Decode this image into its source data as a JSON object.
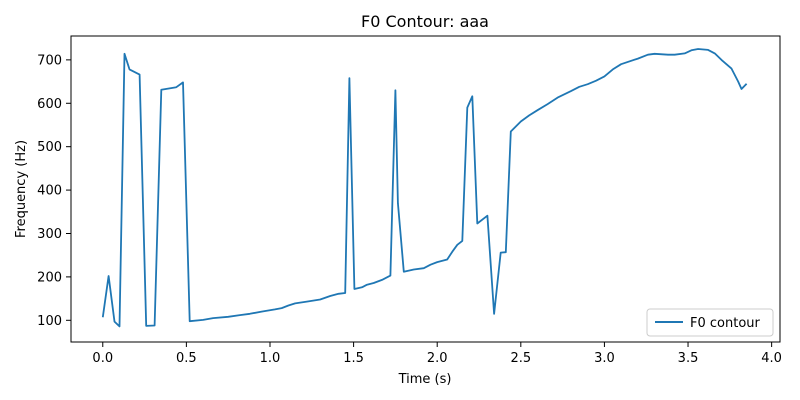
{
  "chart_data": {
    "type": "line",
    "title": "F0 Contour: aaa",
    "xlabel": "Time (s)",
    "ylabel": "Frequency (Hz)",
    "xlim": [
      -0.19,
      4.05
    ],
    "ylim": [
      50,
      755
    ],
    "xticks": [
      0.0,
      0.5,
      1.0,
      1.5,
      2.0,
      2.5,
      3.0,
      3.5,
      4.0
    ],
    "xtick_labels": [
      "0.0",
      "0.5",
      "1.0",
      "1.5",
      "2.0",
      "2.5",
      "3.0",
      "3.5",
      "4.0"
    ],
    "yticks": [
      100,
      200,
      300,
      400,
      500,
      600,
      700
    ],
    "ytick_labels": [
      "100",
      "200",
      "300",
      "400",
      "500",
      "600",
      "700"
    ],
    "grid": false,
    "legend_position": "lower-right",
    "series": [
      {
        "name": "F0 contour",
        "color": "#1f77b4",
        "x": [
          0.0,
          0.035,
          0.07,
          0.1,
          0.13,
          0.16,
          0.22,
          0.26,
          0.31,
          0.35,
          0.44,
          0.48,
          0.52,
          0.6,
          0.66,
          0.75,
          0.82,
          0.88,
          0.95,
          1.03,
          1.07,
          1.11,
          1.15,
          1.22,
          1.3,
          1.36,
          1.41,
          1.45,
          1.475,
          1.505,
          1.55,
          1.58,
          1.62,
          1.67,
          1.72,
          1.75,
          1.765,
          1.8,
          1.86,
          1.92,
          1.96,
          2.0,
          2.06,
          2.09,
          2.12,
          2.15,
          2.18,
          2.21,
          2.24,
          2.3,
          2.34,
          2.38,
          2.41,
          2.44,
          2.5,
          2.55,
          2.6,
          2.66,
          2.72,
          2.8,
          2.85,
          2.9,
          2.95,
          3.0,
          3.05,
          3.1,
          3.2,
          3.26,
          3.3,
          3.38,
          3.42,
          3.48,
          3.52,
          3.56,
          3.62,
          3.66,
          3.7,
          3.76,
          3.8,
          3.82,
          3.85
        ],
        "y": [
          107,
          202,
          97,
          86,
          714,
          678,
          666,
          87,
          88,
          631,
          637,
          648,
          98,
          101,
          105,
          108,
          112,
          115,
          120,
          125,
          128,
          134,
          139,
          143,
          148,
          156,
          161,
          163,
          658,
          172,
          176,
          182,
          186,
          193,
          203,
          630,
          370,
          212,
          217,
          220,
          228,
          234,
          240,
          258,
          274,
          283,
          590,
          616,
          323,
          341,
          115,
          256,
          257,
          535,
          558,
          572,
          584,
          598,
          613,
          628,
          638,
          644,
          652,
          662,
          678,
          690,
          703,
          712,
          714,
          712,
          712,
          715,
          722,
          725,
          723,
          715,
          700,
          680,
          650,
          633,
          645
        ]
      }
    ]
  }
}
